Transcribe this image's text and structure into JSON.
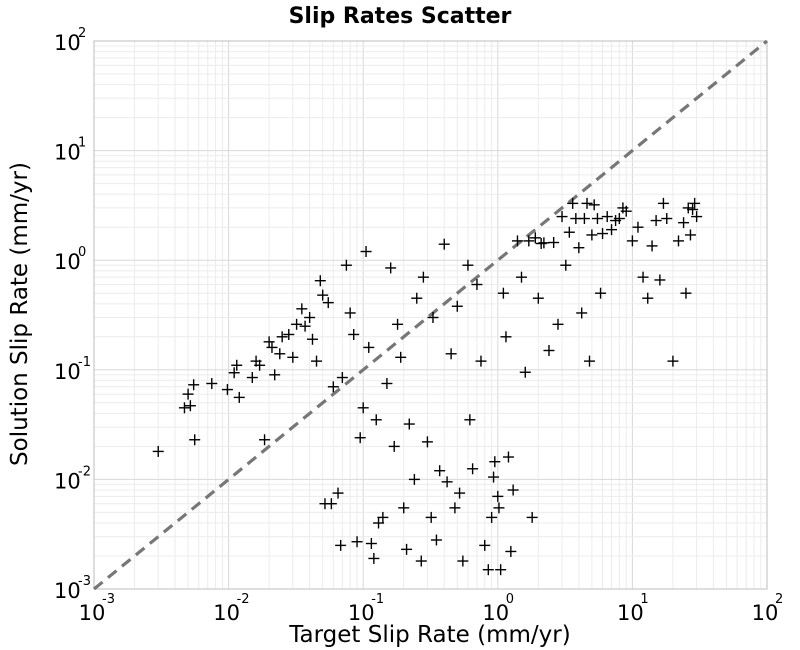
{
  "chart_data": {
    "type": "scatter",
    "title": "Slip Rates Scatter",
    "xlabel": "Target Slip Rate (mm/yr)",
    "ylabel": "Solution Slip Rate (mm/yr)",
    "x_scale": "log",
    "y_scale": "log",
    "xlim": [
      0.001,
      100
    ],
    "ylim": [
      0.001,
      100
    ],
    "x_ticks": [
      {
        "base": "10",
        "exp": "-3"
      },
      {
        "base": "10",
        "exp": "-2"
      },
      {
        "base": "10",
        "exp": "-1"
      },
      {
        "base": "10",
        "exp": "0"
      },
      {
        "base": "10",
        "exp": "1"
      },
      {
        "base": "10",
        "exp": "2"
      }
    ],
    "y_ticks": [
      {
        "base": "10",
        "exp": "-3"
      },
      {
        "base": "10",
        "exp": "-2"
      },
      {
        "base": "10",
        "exp": "-1"
      },
      {
        "base": "10",
        "exp": "0"
      },
      {
        "base": "10",
        "exp": "1"
      },
      {
        "base": "10",
        "exp": "2"
      }
    ],
    "grid": true,
    "legend": "none",
    "marker": "plus",
    "marker_color": "#000000",
    "reference_line": {
      "style": "dashed",
      "color": "#777777",
      "points": [
        [
          0.001,
          0.001
        ],
        [
          100,
          100
        ]
      ]
    },
    "points": [
      [
        0.003,
        0.018
      ],
      [
        0.0047,
        0.045
      ],
      [
        0.0052,
        0.047
      ],
      [
        0.005,
        0.06
      ],
      [
        0.0055,
        0.073
      ],
      [
        0.0056,
        0.023
      ],
      [
        0.0075,
        0.075
      ],
      [
        0.0098,
        0.066
      ],
      [
        0.011,
        0.094
      ],
      [
        0.0115,
        0.11
      ],
      [
        0.012,
        0.056
      ],
      [
        0.015,
        0.085
      ],
      [
        0.016,
        0.12
      ],
      [
        0.017,
        0.11
      ],
      [
        0.0185,
        0.023
      ],
      [
        0.02,
        0.18
      ],
      [
        0.021,
        0.16
      ],
      [
        0.022,
        0.09
      ],
      [
        0.024,
        0.14
      ],
      [
        0.025,
        0.2
      ],
      [
        0.028,
        0.21
      ],
      [
        0.03,
        0.13
      ],
      [
        0.032,
        0.26
      ],
      [
        0.035,
        0.36
      ],
      [
        0.037,
        0.25
      ],
      [
        0.04,
        0.3
      ],
      [
        0.042,
        0.19
      ],
      [
        0.045,
        0.12
      ],
      [
        0.048,
        0.65
      ],
      [
        0.05,
        0.48
      ],
      [
        0.052,
        0.006
      ],
      [
        0.055,
        0.41
      ],
      [
        0.058,
        0.006
      ],
      [
        0.06,
        0.07
      ],
      [
        0.065,
        0.0075
      ],
      [
        0.068,
        0.0025
      ],
      [
        0.07,
        0.085
      ],
      [
        0.075,
        0.9
      ],
      [
        0.08,
        0.33
      ],
      [
        0.085,
        0.21
      ],
      [
        0.09,
        0.0027
      ],
      [
        0.095,
        0.024
      ],
      [
        0.1,
        0.045
      ],
      [
        0.105,
        1.2
      ],
      [
        0.11,
        0.16
      ],
      [
        0.115,
        0.0026
      ],
      [
        0.12,
        0.0019
      ],
      [
        0.125,
        0.035
      ],
      [
        0.13,
        0.004
      ],
      [
        0.14,
        0.0045
      ],
      [
        0.15,
        0.075
      ],
      [
        0.16,
        0.85
      ],
      [
        0.17,
        0.02
      ],
      [
        0.18,
        0.26
      ],
      [
        0.19,
        0.13
      ],
      [
        0.2,
        0.0055
      ],
      [
        0.21,
        0.0023
      ],
      [
        0.22,
        0.032
      ],
      [
        0.24,
        0.01
      ],
      [
        0.25,
        0.45
      ],
      [
        0.27,
        0.0018
      ],
      [
        0.28,
        0.7
      ],
      [
        0.3,
        0.022
      ],
      [
        0.32,
        0.0045
      ],
      [
        0.33,
        0.3
      ],
      [
        0.35,
        0.0028
      ],
      [
        0.37,
        0.012
      ],
      [
        0.4,
        1.4
      ],
      [
        0.42,
        0.0095
      ],
      [
        0.45,
        0.14
      ],
      [
        0.48,
        0.0055
      ],
      [
        0.5,
        0.38
      ],
      [
        0.52,
        0.0075
      ],
      [
        0.55,
        0.0018
      ],
      [
        0.6,
        0.9
      ],
      [
        0.62,
        0.035
      ],
      [
        0.65,
        0.0125
      ],
      [
        0.7,
        0.6
      ],
      [
        0.75,
        0.12
      ],
      [
        0.8,
        0.0025
      ],
      [
        0.85,
        0.0015
      ],
      [
        0.9,
        0.0045
      ],
      [
        0.93,
        0.0105
      ],
      [
        0.95,
        0.0145
      ],
      [
        1.0,
        0.007
      ],
      [
        1.02,
        0.0055
      ],
      [
        1.05,
        0.0015
      ],
      [
        1.1,
        0.5
      ],
      [
        1.15,
        0.2
      ],
      [
        1.2,
        0.016
      ],
      [
        1.25,
        0.0022
      ],
      [
        1.3,
        0.008
      ],
      [
        1.4,
        1.5
      ],
      [
        1.5,
        0.7
      ],
      [
        1.6,
        0.095
      ],
      [
        1.7,
        1.5
      ],
      [
        1.8,
        0.0045
      ],
      [
        1.9,
        1.6
      ],
      [
        2.0,
        0.45
      ],
      [
        2.1,
        1.42
      ],
      [
        2.2,
        1.44
      ],
      [
        2.4,
        0.15
      ],
      [
        2.6,
        1.45
      ],
      [
        2.8,
        0.26
      ],
      [
        3.0,
        2.5
      ],
      [
        3.2,
        0.9
      ],
      [
        3.4,
        1.8
      ],
      [
        3.6,
        3.3
      ],
      [
        3.8,
        2.4
      ],
      [
        4.0,
        1.3
      ],
      [
        4.2,
        0.33
      ],
      [
        4.4,
        2.4
      ],
      [
        4.6,
        3.3
      ],
      [
        4.8,
        0.12
      ],
      [
        5.0,
        1.7
      ],
      [
        5.2,
        3.2
      ],
      [
        5.5,
        2.4
      ],
      [
        5.8,
        0.5
      ],
      [
        6.0,
        1.75
      ],
      [
        6.5,
        2.5
      ],
      [
        7.0,
        1.9
      ],
      [
        7.5,
        2.3
      ],
      [
        8.0,
        2.4
      ],
      [
        8.5,
        3.0
      ],
      [
        9.0,
        2.8
      ],
      [
        10.0,
        1.5
      ],
      [
        11.0,
        2.0
      ],
      [
        12.0,
        0.7
      ],
      [
        13.0,
        0.45
      ],
      [
        14.0,
        1.35
      ],
      [
        15.0,
        2.3
      ],
      [
        16.0,
        0.66
      ],
      [
        17.0,
        3.3
      ],
      [
        18.0,
        2.4
      ],
      [
        20.0,
        0.12
      ],
      [
        22.0,
        1.5
      ],
      [
        24.0,
        2.2
      ],
      [
        25.0,
        0.5
      ],
      [
        26.0,
        3.0
      ],
      [
        27.0,
        1.7
      ],
      [
        28.0,
        2.9
      ],
      [
        29.0,
        3.3
      ],
      [
        30.0,
        2.5
      ]
    ]
  }
}
